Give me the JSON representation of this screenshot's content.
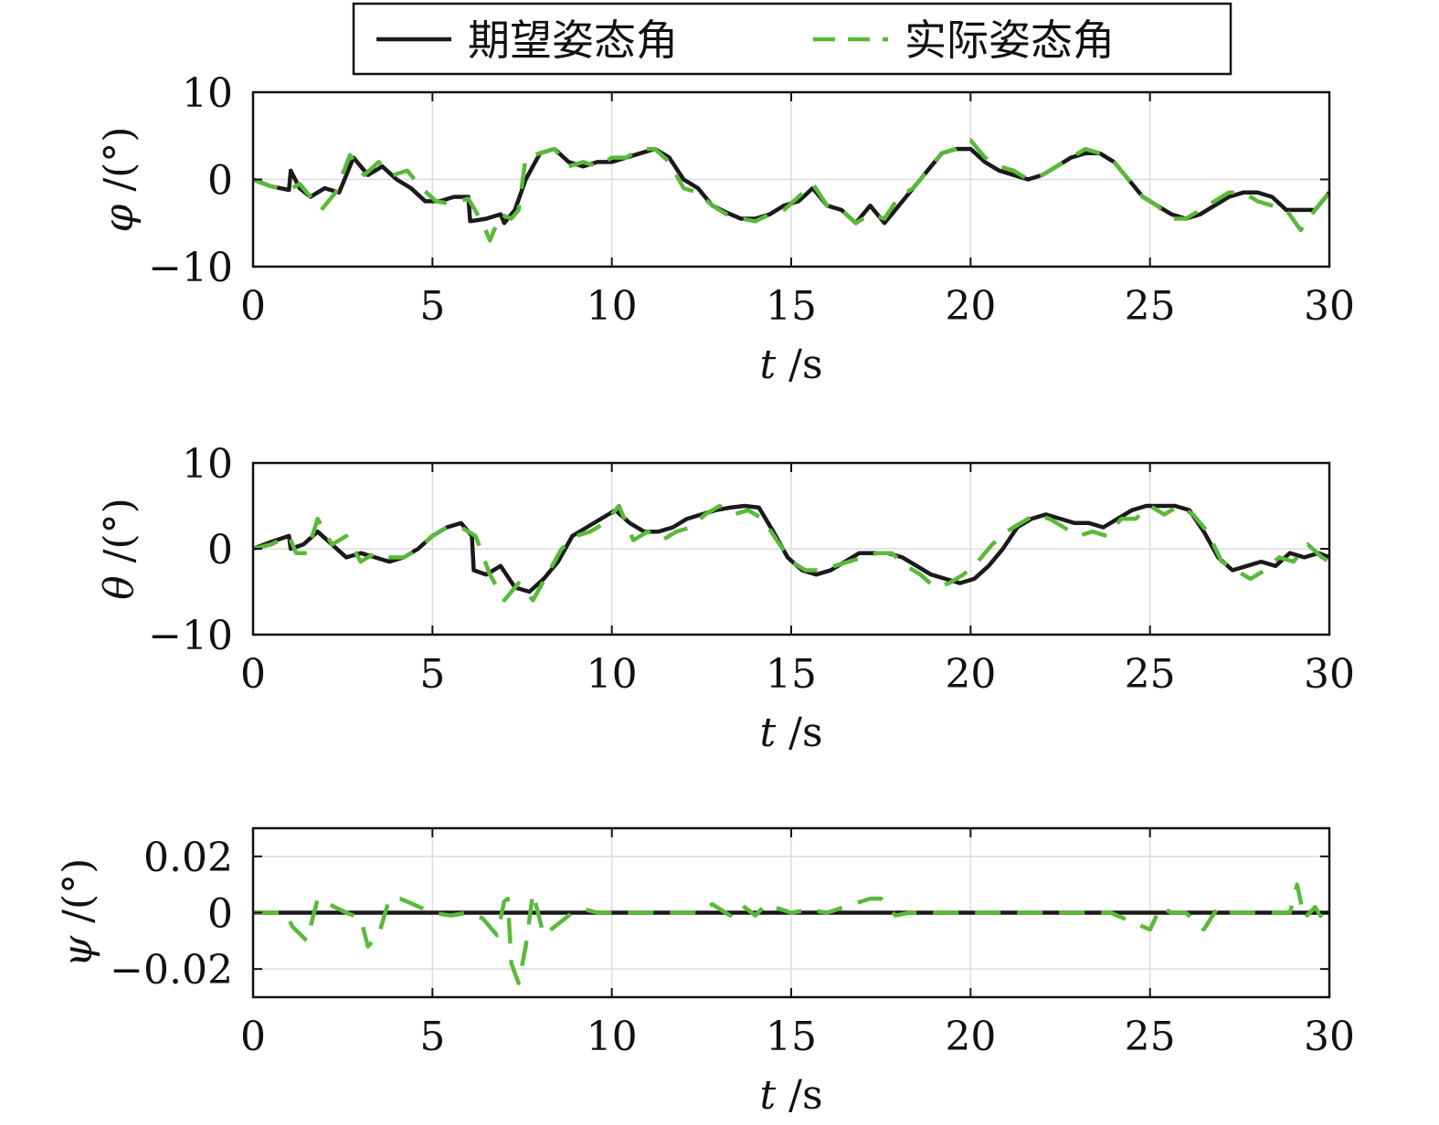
{
  "legend": {
    "desired_label": "期望姿态角",
    "actual_label": "实际姿态角",
    "desired_color": "#1a1a1a",
    "actual_color": "#5ab93a"
  },
  "chart_data": [
    {
      "type": "line",
      "ylabel_var": "φ",
      "ylabel_unit": "/(°)",
      "xlabel_var": "t",
      "xlabel_unit": "/s",
      "xlim": [
        0,
        30
      ],
      "ylim": [
        -10,
        10
      ],
      "xticks": [
        0,
        5,
        10,
        15,
        20,
        25,
        30
      ],
      "yticks": [
        -10,
        0,
        10
      ],
      "ytick_labels": [
        "−10",
        "0",
        "10"
      ],
      "grid": true,
      "series": [
        {
          "name": "期望姿态角",
          "style": "solid",
          "x": [
            0,
            0.5,
            1,
            1.05,
            1.3,
            1.6,
            2,
            2.4,
            2.8,
            3.2,
            3.6,
            4,
            4.4,
            4.8,
            5.2,
            5.6,
            6,
            6.05,
            6.5,
            6.9,
            7,
            7.3,
            7.6,
            8,
            8.4,
            8.8,
            9.2,
            9.6,
            10,
            10.4,
            10.8,
            11.2,
            11.6,
            12,
            12.4,
            12.8,
            13.2,
            13.6,
            14,
            14.4,
            14.8,
            15.2,
            15.6,
            16,
            16.4,
            16.8,
            17.2,
            17.6,
            18,
            18.4,
            18.8,
            19.2,
            19.6,
            20,
            20.4,
            20.8,
            21.2,
            21.6,
            22,
            22.4,
            22.8,
            23.2,
            23.6,
            24,
            24.4,
            24.8,
            25.2,
            25.6,
            26,
            26.4,
            26.8,
            27.2,
            27.6,
            28,
            28.4,
            28.8,
            29.2,
            29.6,
            30
          ],
          "y": [
            0,
            -0.8,
            -1.2,
            1,
            -1,
            -2,
            -1,
            -1.5,
            2.5,
            0.5,
            1.5,
            0,
            -1,
            -2.5,
            -2.5,
            -2,
            -2,
            -4.8,
            -4.5,
            -4,
            -5,
            -3.5,
            0,
            3,
            3.5,
            2,
            1.5,
            2,
            2,
            2.5,
            3,
            3.5,
            2.5,
            0,
            -1,
            -3,
            -3.8,
            -4.5,
            -4.5,
            -4,
            -3,
            -2.5,
            -1,
            -3,
            -3.5,
            -5,
            -3,
            -5,
            -3,
            -1,
            1,
            3,
            3.5,
            3.5,
            2,
            1,
            0.5,
            0,
            0.5,
            1.5,
            2.5,
            3,
            3,
            2,
            0,
            -2,
            -3,
            -4,
            -4.5,
            -4,
            -3,
            -2,
            -1.5,
            -1.5,
            -2,
            -3.5,
            -3.5,
            -3.5,
            -1.5
          ]
        },
        {
          "name": "实际姿态角",
          "style": "dashed",
          "x": [
            0,
            0.5,
            1,
            1.3,
            1.6,
            1.9,
            2.3,
            2.7,
            3.1,
            3.5,
            3.9,
            4.3,
            4.7,
            5.1,
            5.5,
            6,
            6.4,
            6.6,
            6.9,
            7.2,
            7.4,
            7.6,
            8,
            8.4,
            8.8,
            9.2,
            9.6,
            10,
            10.4,
            10.8,
            11.2,
            11.6,
            12,
            12.4,
            12.8,
            13.2,
            13.6,
            14,
            14.4,
            14.8,
            15.2,
            15.6,
            16,
            16.4,
            16.8,
            17.2,
            17.6,
            18,
            18.4,
            18.8,
            19.2,
            19.6,
            20,
            20.4,
            20.8,
            21.2,
            21.6,
            22,
            22.4,
            22.8,
            23.2,
            23.6,
            24,
            24.4,
            24.8,
            25.2,
            25.6,
            26,
            26.4,
            26.8,
            27.2,
            27.6,
            28,
            28.4,
            28.8,
            29.2,
            29.6,
            30
          ],
          "y": [
            0,
            -0.8,
            -1.2,
            -0.5,
            -2,
            -3.5,
            -1.5,
            2.8,
            0.5,
            2,
            0.5,
            1,
            -1,
            -2.5,
            -2.8,
            -2.2,
            -5,
            -7,
            -4,
            -4.5,
            -3.5,
            2.5,
            3,
            3.5,
            1.5,
            2,
            1.5,
            2.5,
            2.5,
            3.5,
            3.5,
            2,
            -1,
            -1.5,
            -3,
            -4,
            -4.5,
            -4.8,
            -4,
            -3.5,
            -2,
            -0.5,
            -3,
            -3.5,
            -5,
            -4,
            -4.5,
            -2,
            -1,
            1,
            3,
            3.5,
            4.5,
            2.5,
            1.5,
            1,
            0,
            0.5,
            1.5,
            2.5,
            3.5,
            3,
            2,
            0,
            -2,
            -3,
            -4.5,
            -4.5,
            -3.5,
            -2.5,
            -1.5,
            -1.5,
            -2.5,
            -3,
            -3.5,
            -5.8,
            -3.5,
            -1.5
          ]
        }
      ]
    },
    {
      "type": "line",
      "ylabel_var": "θ",
      "ylabel_unit": "/(°)",
      "xlabel_var": "t",
      "xlabel_unit": "/s",
      "xlim": [
        0,
        30
      ],
      "ylim": [
        -10,
        10
      ],
      "xticks": [
        0,
        5,
        10,
        15,
        20,
        25,
        30
      ],
      "yticks": [
        -10,
        0,
        10
      ],
      "ytick_labels": [
        "−10",
        "0",
        "10"
      ],
      "grid": true,
      "series": [
        {
          "name": "期望姿态角",
          "style": "solid",
          "x": [
            0,
            0.5,
            1,
            1.05,
            1.4,
            1.8,
            2.2,
            2.6,
            3,
            3.4,
            3.8,
            4.2,
            4.6,
            5,
            5.4,
            5.8,
            6.1,
            6.15,
            6.5,
            6.9,
            7.3,
            7.7,
            8.1,
            8.5,
            8.9,
            9.3,
            9.7,
            10.1,
            10.5,
            10.9,
            11.3,
            11.7,
            12.1,
            12.5,
            12.9,
            13.3,
            13.7,
            14.1,
            14.5,
            14.9,
            15.3,
            15.7,
            16.1,
            16.5,
            16.9,
            17.3,
            17.7,
            18.1,
            18.5,
            18.9,
            19.3,
            19.7,
            20.1,
            20.5,
            20.9,
            21.3,
            21.7,
            22.1,
            22.5,
            22.9,
            23.3,
            23.7,
            24.1,
            24.5,
            24.9,
            25.3,
            25.7,
            26.1,
            26.5,
            26.9,
            27.3,
            27.7,
            28.1,
            28.5,
            28.9,
            29.3,
            29.7,
            30
          ],
          "y": [
            0,
            0.8,
            1.5,
            0,
            0.5,
            2,
            0.5,
            -1,
            -0.5,
            -1,
            -1.5,
            -1,
            0,
            1.5,
            2.5,
            3,
            1.5,
            -2.5,
            -3,
            -2,
            -4.5,
            -5,
            -3.5,
            -1.5,
            1.5,
            2.5,
            3.5,
            4.5,
            3,
            2,
            2,
            2.5,
            3.5,
            4,
            4.5,
            4.8,
            5,
            4.8,
            2,
            -1,
            -2.5,
            -3,
            -2.5,
            -1.5,
            -0.5,
            -0.5,
            -0.5,
            -1,
            -2,
            -3,
            -3.5,
            -4,
            -3.5,
            -2,
            0,
            2.5,
            3.5,
            4,
            3.5,
            3,
            3,
            2.5,
            3.5,
            4.5,
            5,
            5,
            5,
            4.5,
            2,
            -1,
            -2.5,
            -2,
            -1.5,
            -2,
            -0.5,
            -1,
            -0.5,
            -1
          ]
        },
        {
          "name": "实际姿态角",
          "style": "dashed",
          "x": [
            0,
            0.5,
            1,
            1.2,
            1.5,
            1.8,
            2.2,
            2.6,
            3,
            3.4,
            3.8,
            4.2,
            4.6,
            5,
            5.4,
            5.8,
            6.2,
            6.6,
            7,
            7.4,
            7.8,
            8.2,
            8.6,
            9,
            9.4,
            9.8,
            10.2,
            10.6,
            11,
            11.4,
            11.8,
            12.2,
            12.6,
            13,
            13.4,
            13.8,
            14.2,
            14.6,
            15,
            15.4,
            15.8,
            16.2,
            16.6,
            17,
            17.4,
            17.8,
            18.2,
            18.6,
            19,
            19.4,
            19.8,
            20.2,
            20.6,
            21,
            21.4,
            21.8,
            22.2,
            22.6,
            23,
            23.4,
            23.8,
            24.2,
            24.6,
            25,
            25.4,
            25.8,
            26.2,
            26.6,
            27,
            27.4,
            27.8,
            28.2,
            28.6,
            29,
            29.4,
            29.8,
            30
          ],
          "y": [
            0,
            0.5,
            1.5,
            -0.5,
            -0.5,
            3.5,
            0.5,
            1.5,
            -1.5,
            -0.5,
            -1,
            -1,
            0,
            1.5,
            2.5,
            2.5,
            1.5,
            -3,
            -6,
            -4,
            -6,
            -3,
            0,
            1.5,
            2,
            3,
            5,
            1,
            2,
            1,
            2,
            2.5,
            4,
            5,
            4,
            4.5,
            3.5,
            1,
            -1.5,
            -2.5,
            -2.5,
            -2,
            -1.5,
            -1,
            -0.5,
            -0.5,
            -2,
            -3,
            -4.5,
            -4,
            -3,
            -1.5,
            0.5,
            2,
            3,
            4,
            3.5,
            2.5,
            1.5,
            2,
            1.5,
            3.5,
            3.5,
            5,
            4,
            5,
            4,
            2,
            -1.5,
            -2.5,
            -3.5,
            -2.5,
            -1,
            -1.5,
            0.5,
            -1,
            -1.5
          ]
        }
      ]
    },
    {
      "type": "line",
      "ylabel_var": "ψ",
      "ylabel_unit": "/(°)",
      "xlabel_var": "t",
      "xlabel_unit": "/s",
      "xlim": [
        0,
        30
      ],
      "ylim": [
        -0.03,
        0.03
      ],
      "xticks": [
        0,
        5,
        10,
        15,
        20,
        25,
        30
      ],
      "yticks": [
        -0.02,
        0,
        0.02
      ],
      "ytick_labels": [
        "−0.02",
        "0",
        "0.02"
      ],
      "grid": true,
      "series": [
        {
          "name": "期望姿态角",
          "style": "solid",
          "x": [
            0,
            30
          ],
          "y": [
            0,
            0
          ]
        },
        {
          "name": "实际姿态角",
          "style": "dashed",
          "x": [
            0,
            0.9,
            1.1,
            1.5,
            1.8,
            2.6,
            3,
            3.2,
            3.5,
            3.8,
            4.1,
            5,
            5.5,
            6,
            6.4,
            6.8,
            7,
            7.1,
            7.2,
            7.4,
            7.6,
            7.8,
            8.1,
            8.9,
            9.3,
            9.6,
            10,
            11.5,
            12,
            12.4,
            12.8,
            13.3,
            13.6,
            14,
            14.3,
            15,
            15.5,
            16,
            17.2,
            17.5,
            17.9,
            18.3,
            19.7,
            21,
            22.5,
            23.9,
            25,
            25.3,
            25.6,
            26,
            26.5,
            26.9,
            27.2,
            28.5,
            28.9,
            29.1,
            29.3,
            29.6,
            29.9,
            30
          ],
          "y": [
            0,
            0,
            -0.005,
            -0.01,
            0.005,
            0,
            -0.002,
            -0.012,
            -0.008,
            0.005,
            0.005,
            0,
            -0.001,
            0,
            -0.002,
            -0.008,
            0.004,
            0.005,
            -0.018,
            -0.025,
            -0.012,
            0.007,
            -0.008,
            0,
            0.001,
            0,
            0,
            0,
            0,
            0,
            0.003,
            -0.001,
            0.003,
            -0.001,
            0.003,
            0,
            0.001,
            0,
            0.005,
            0.005,
            -0.001,
            0,
            0,
            0,
            0,
            0,
            -0.006,
            0.002,
            0,
            0,
            -0.006,
            0.002,
            0,
            0,
            0,
            0.01,
            -0.002,
            0.002,
            -0.004,
            -0.004
          ]
        }
      ]
    }
  ]
}
